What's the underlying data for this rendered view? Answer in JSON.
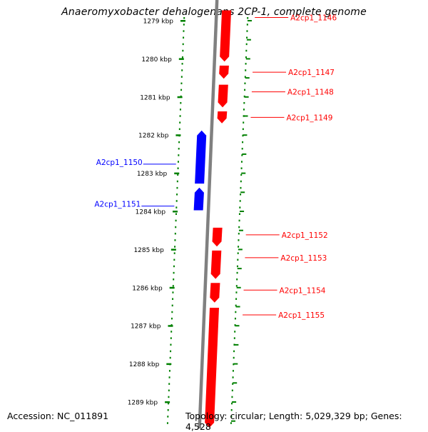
{
  "title": "Anaeromyxobacter dehalogenans 2CP-1, complete genome",
  "footer": {
    "accession": "Accession: NC_011891",
    "summary": "Topology: circular; Length: 5,029,329 bp; Genes: 4,528"
  },
  "scale": {
    "unit": "kbp",
    "ticks": [
      {
        "kbp": 1279,
        "label": "1279 kbp"
      },
      {
        "kbp": 1280,
        "label": "1280 kbp"
      },
      {
        "kbp": 1281,
        "label": "1281 kbp"
      },
      {
        "kbp": 1282,
        "label": "1282 kbp"
      },
      {
        "kbp": 1283,
        "label": "1283 kbp"
      },
      {
        "kbp": 1284,
        "label": "1284 kbp"
      },
      {
        "kbp": 1285,
        "label": "1285 kbp"
      },
      {
        "kbp": 1286,
        "label": "1286 kbp"
      },
      {
        "kbp": 1287,
        "label": "1287 kbp"
      },
      {
        "kbp": 1288,
        "label": "1288 kbp"
      },
      {
        "kbp": 1289,
        "label": "1289 kbp"
      }
    ]
  },
  "colors": {
    "forward": "#ff0000",
    "reverse": "#0000ff",
    "backbone": "#808080",
    "scale": "#008000"
  },
  "genes": [
    {
      "name": "A2cp1_1146",
      "strand": "forward",
      "start_kbp": 1278.7,
      "end_kbp": 1280.1
    },
    {
      "name": "A2cp1_1147",
      "strand": "forward",
      "start_kbp": 1280.15,
      "end_kbp": 1280.55
    },
    {
      "name": "A2cp1_1148",
      "strand": "forward",
      "start_kbp": 1280.65,
      "end_kbp": 1281.3
    },
    {
      "name": "A2cp1_1149",
      "strand": "forward",
      "start_kbp": 1281.35,
      "end_kbp": 1281.72
    },
    {
      "name": "A2cp1_1150",
      "strand": "reverse",
      "start_kbp": 1281.85,
      "end_kbp": 1283.3
    },
    {
      "name": "A2cp1_1151",
      "strand": "reverse",
      "start_kbp": 1283.35,
      "end_kbp": 1284.0
    },
    {
      "name": "A2cp1_1152",
      "strand": "forward",
      "start_kbp": 1284.4,
      "end_kbp": 1284.95
    },
    {
      "name": "A2cp1_1153",
      "strand": "forward",
      "start_kbp": 1285.0,
      "end_kbp": 1285.8
    },
    {
      "name": "A2cp1_1154",
      "strand": "forward",
      "start_kbp": 1285.85,
      "end_kbp": 1286.42
    },
    {
      "name": "A2cp1_1155",
      "strand": "forward",
      "start_kbp": 1286.5,
      "end_kbp": 1289.7
    }
  ]
}
